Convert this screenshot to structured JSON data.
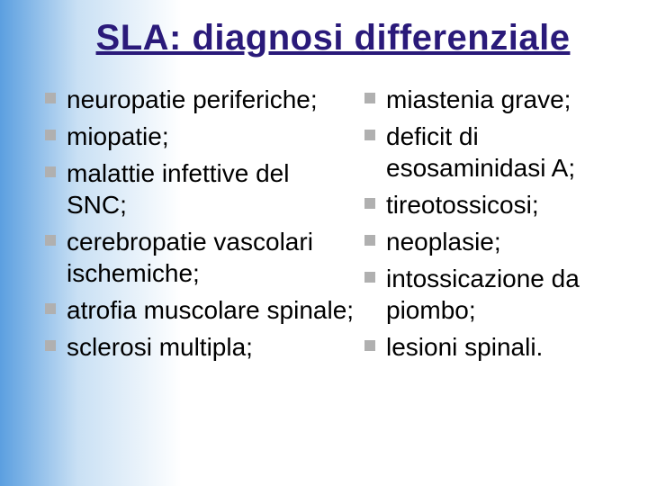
{
  "title": "SLA: diagnosi differenziale",
  "title_color": "#2a1a7a",
  "title_fontsize": 40,
  "item_fontsize": 28,
  "bullet_color": "#b0b0b0",
  "bullet_size": 12,
  "columns": {
    "left": [
      "neuropatie periferiche;",
      "miopatie;",
      "malattie infettive del SNC;",
      "cerebropatie vascolari ischemiche;",
      "atrofia muscolare spinale;",
      "sclerosi multipla;"
    ],
    "right": [
      "miastenia grave;",
      "deficit di esosaminidasi A;",
      "tireotossicosi;",
      "neoplasie;",
      "intossicazione da piombo;",
      "lesioni spinali."
    ]
  }
}
